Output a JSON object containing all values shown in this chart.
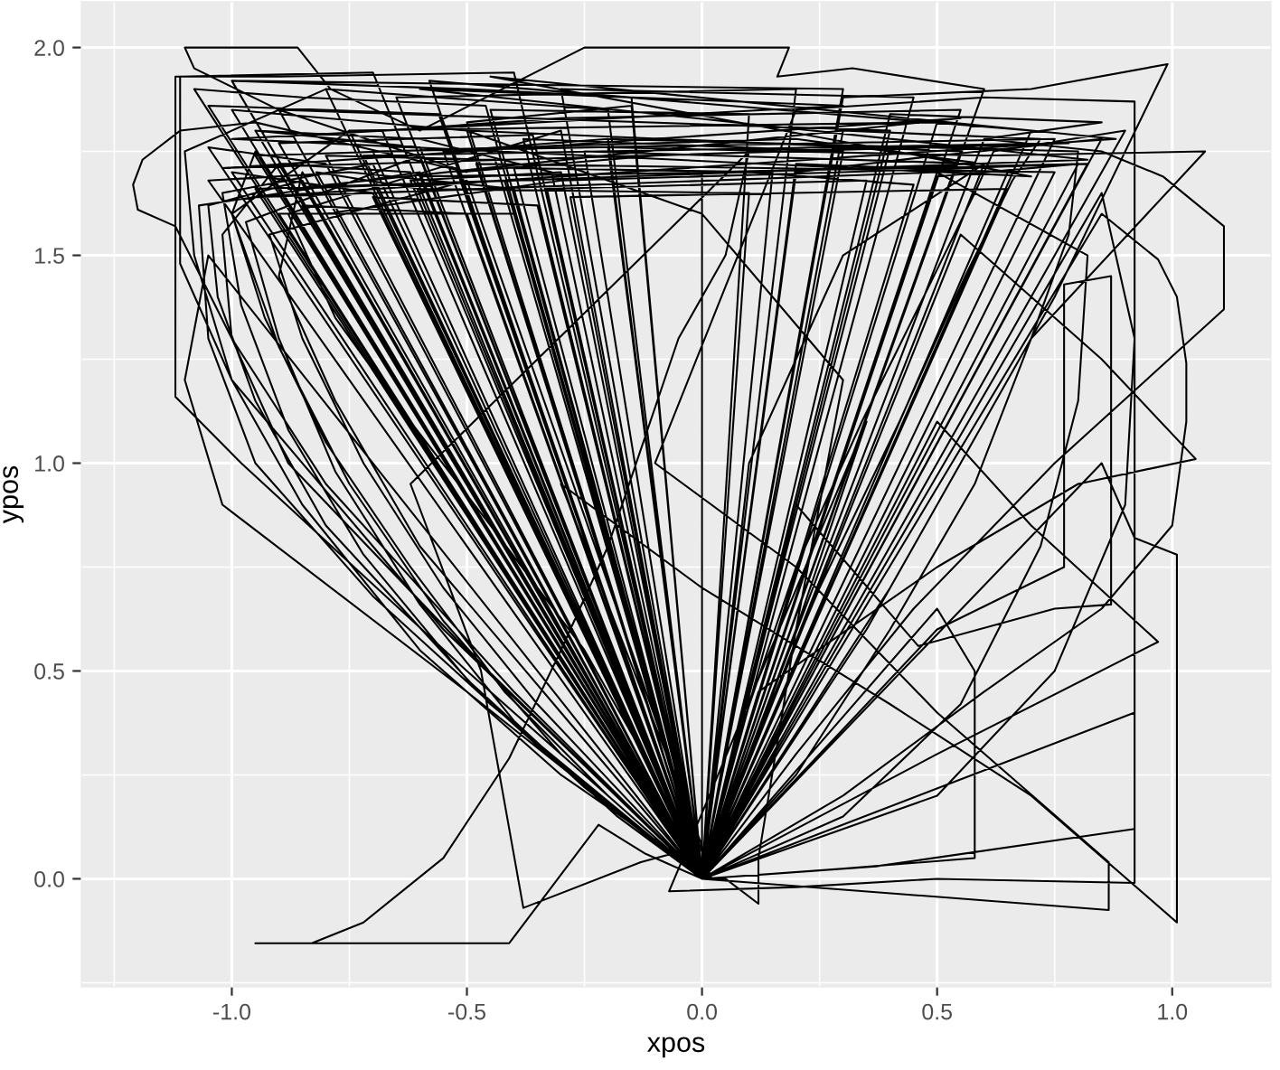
{
  "chart_data": {
    "type": "line",
    "xlabel": "xpos",
    "ylabel": "ypos",
    "xlim": [
      -1.32,
      1.21
    ],
    "ylim": [
      -0.26,
      2.11
    ],
    "xticks": [
      {
        "value": -1,
        "label": "-1.0"
      },
      -0.5,
      {
        "value": 0,
        "label": "0.0"
      },
      0.5,
      {
        "value": 1,
        "label": "1.0"
      }
    ],
    "yticks": [
      {
        "value": 0,
        "label": "0.0"
      },
      0.5,
      {
        "value": 1,
        "label": "1.0"
      },
      1.5,
      {
        "value": 2,
        "label": "2.0"
      }
    ],
    "grid": true,
    "series": [
      {
        "color": "#000000",
        "x": [
          0.0,
          -0.12,
          -0.22,
          -0.41,
          -0.95,
          -0.83,
          -0.72,
          -0.55,
          -0.41,
          -0.3,
          -0.2,
          -0.05,
          0.05,
          0.1,
          -0.62,
          -0.47,
          -0.38,
          -0.13,
          0.0,
          -0.3,
          0.0,
          0.4,
          0.7,
          1.01,
          1.01,
          0.92,
          0.85,
          0.0,
          0.37,
          0.92,
          0.92,
          0.6,
          0.2,
          -0.1,
          0.2,
          0.5,
          0.865,
          0.865,
          0.0,
          0.2,
          0.45,
          0.75,
          1.11,
          1.11,
          0.98,
          0.85,
          0.6,
          0.0,
          0.3,
          0.6,
          0.85,
          1.0,
          1.03,
          1.03,
          1.01,
          0.97,
          0.85,
          0.0,
          0.12,
          0.5,
          0.8,
          1.05,
          0.85,
          0.55,
          0.0,
          0.25,
          0.5,
          0.77,
          0.77,
          0.87,
          0.87,
          0.75,
          0.46,
          0.2,
          0.0,
          -0.5,
          -0.98,
          -1.12,
          -1.12,
          -0.9,
          -0.4,
          0.0,
          -0.4,
          -0.8,
          -1.0,
          -1.12,
          -1.2,
          -1.21,
          -1.19,
          -1.11,
          -0.95,
          -0.5,
          -0.9,
          -1.08,
          -1.1,
          -0.86,
          -0.79,
          -0.6,
          -0.25,
          0.185,
          0.16,
          0.32,
          0.6,
          0.0,
          -0.55,
          -1.0,
          -1.11,
          -1.11,
          -0.7,
          0.0,
          0.4,
          0.75,
          0.99,
          0.7,
          0.3,
          0.0,
          0.35,
          0.7,
          1.07,
          0.6,
          -0.2,
          0.0,
          -0.55,
          -0.2,
          0.0,
          -0.45,
          0.1,
          0.0,
          -0.62,
          -0.9,
          0.0,
          -0.38,
          0.3,
          0.0,
          -0.7,
          -1.0,
          0.0,
          -0.3,
          0.45,
          0.0,
          -0.5,
          -0.85,
          0.0,
          -0.25,
          0.6,
          0.0,
          -0.8,
          -1.05,
          0.0,
          -0.65,
          0.2,
          0.0,
          -0.42,
          -0.95,
          0.0,
          -0.58,
          0.7,
          0.0,
          -0.35,
          -0.7,
          0.0,
          -0.75,
          0.5,
          0.0,
          -0.2,
          -0.8,
          0.0,
          -0.48,
          0.75,
          0.0,
          -0.9,
          -0.4,
          0.0,
          0.55,
          -0.5,
          0.0,
          0.4,
          -0.9,
          0.0,
          0.65,
          0.2,
          0.0,
          0.75,
          -0.7,
          0.0,
          0.3,
          -1.0,
          0.0,
          0.82,
          0.0,
          0.0,
          -0.2,
          -0.42,
          -0.62,
          -0.8,
          -0.93,
          -1.0,
          -0.95,
          0.0,
          -0.25,
          -0.5,
          -0.72,
          -0.88,
          -0.98,
          -1.02,
          -0.7,
          0.0,
          -0.15,
          -0.35,
          -0.55,
          -0.72,
          -0.85,
          -0.92,
          -0.5,
          0.02,
          -0.3,
          -0.6,
          -0.85,
          -1.0,
          -1.08,
          -1.1,
          -0.8,
          0.0,
          -0.1,
          -0.25,
          -0.45,
          -0.62,
          -0.78,
          -0.88,
          -0.3,
          0.0,
          -0.35,
          -0.7,
          -0.95,
          -1.05,
          -1.07,
          -0.6,
          0.0,
          -0.5,
          -1.02,
          -1.1,
          -1.05,
          0.0,
          -0.3,
          -0.6,
          -0.78,
          -0.9,
          -0.85,
          0.0,
          0.1,
          0.25,
          0.42,
          0.56,
          0.66,
          0.72,
          0.3,
          0.0,
          0.2,
          0.4,
          0.58,
          0.7,
          0.78,
          0.8,
          -0.2,
          0.0,
          0.08,
          0.2,
          0.34,
          0.48,
          0.58,
          0.62,
          0.9,
          0.0,
          0.3,
          0.55,
          0.72,
          0.8,
          0.82,
          0.5,
          0.0,
          0.5,
          0.75,
          0.9,
          0.92,
          0.85,
          0.0,
          0.05,
          0.1,
          0.3,
          0.6,
          0.2,
          -0.4,
          -0.95,
          0.0,
          -0.3,
          -0.6,
          -0.8,
          -0.3,
          0.3,
          0.8,
          0.0,
          0.2,
          0.3,
          0.0,
          -0.5,
          -1.0,
          0.0,
          0.5,
          0.97,
          0.7,
          0.5,
          0.0,
          0.25,
          0.58,
          0.58,
          0.5,
          0.0,
          0.05,
          0.12,
          0.12,
          0.2,
          0.35,
          -0.07,
          0.2,
          0.5,
          0.92,
          0.92,
          0.0,
          -0.52,
          -0.1,
          0.4,
          0.0,
          -0.4,
          -0.75,
          -1.05,
          0.0,
          -0.68,
          -0.3,
          0.55,
          0.0,
          -0.46,
          -0.85,
          -1.08,
          0.0,
          -0.82,
          -0.6,
          0.1,
          0.0,
          -0.32,
          -0.6,
          -0.95,
          0.0,
          0.45,
          0.1,
          -0.6,
          0.0,
          0.6,
          0.85,
          0.4,
          0.0,
          -0.5,
          -0.88,
          -1.0,
          -1.02,
          -0.9,
          0.0,
          -0.45,
          -0.8,
          -0.95,
          -1.03,
          -1.05,
          -0.85,
          0.0,
          -0.15,
          -0.5,
          -1.0,
          0.0,
          0.2,
          0.5,
          0.85,
          0.0,
          -0.72,
          0.78,
          -1.02,
          0.55,
          -0.88,
          0.82,
          -0.6,
          0.3,
          -1.0,
          0.7,
          -0.45,
          0.88,
          -0.95,
          0.5,
          0.0,
          -0.5,
          -0.15,
          0.0,
          -0.6,
          -0.95,
          0.0,
          -0.33,
          0.35,
          0.0,
          -0.44,
          -0.8,
          0.0,
          -0.28,
          0.65,
          0.0,
          -0.56,
          -1.05,
          0.0,
          -0.4,
          0.15,
          0.0,
          0.5,
          0.8,
          0.0,
          -0.62,
          -0.3,
          0.0,
          -0.36,
          -0.9,
          0.0,
          -0.18,
          -0.4,
          -0.6,
          -0.78,
          -0.9,
          -0.97,
          -0.6,
          0.0,
          -0.3,
          -0.55,
          -0.75,
          -0.9,
          -1.0,
          -0.75
        ],
        "values": [
          0.0,
          0.06,
          0.13,
          -0.155,
          -0.155,
          -0.155,
          -0.105,
          0.05,
          0.29,
          0.55,
          0.8,
          1.3,
          1.5,
          1.75,
          0.95,
          0.5,
          -0.07,
          0.04,
          0.08,
          0.95,
          0.7,
          0.42,
          0.2,
          -0.105,
          0.78,
          0.82,
          1.0,
          0.0,
          0.03,
          0.12,
          1.87,
          1.88,
          1.85,
          1.0,
          0.75,
          0.4,
          0.04,
          -0.075,
          0.0,
          0.3,
          0.65,
          1.0,
          1.37,
          1.57,
          1.69,
          1.75,
          1.78,
          0.0,
          0.2,
          0.45,
          0.65,
          0.85,
          1.1,
          1.24,
          1.4,
          1.49,
          1.6,
          0.0,
          0.45,
          0.75,
          0.95,
          1.01,
          1.25,
          1.55,
          0.0,
          0.3,
          0.6,
          0.75,
          1.43,
          1.45,
          0.66,
          0.65,
          0.56,
          0.9,
          0.0,
          0.5,
          1.0,
          1.16,
          1.93,
          1.93,
          1.94,
          0.0,
          0.45,
          0.95,
          1.3,
          1.57,
          1.61,
          1.67,
          1.73,
          1.8,
          1.82,
          1.7,
          1.85,
          1.95,
          2.0,
          2.0,
          1.9,
          1.8,
          2.0,
          2.0,
          1.93,
          1.95,
          1.9,
          0.0,
          0.6,
          1.2,
          1.48,
          1.93,
          1.94,
          0.0,
          0.7,
          1.4,
          1.96,
          1.9,
          1.88,
          0.0,
          0.6,
          1.3,
          1.75,
          1.74,
          1.76,
          0.0,
          1.75,
          1.78,
          0.0,
          1.85,
          1.84,
          0.0,
          1.7,
          1.72,
          0.0,
          1.78,
          1.75,
          0.0,
          1.65,
          1.7,
          0.0,
          1.9,
          1.88,
          0.0,
          1.6,
          1.62,
          0.0,
          1.75,
          1.72,
          0.0,
          1.72,
          1.76,
          0.0,
          1.88,
          1.9,
          0.0,
          1.68,
          1.66,
          0.0,
          1.92,
          1.8,
          0.0,
          1.62,
          1.64,
          0.0,
          1.8,
          1.82,
          0.0,
          1.85,
          1.9,
          0.0,
          1.72,
          1.7,
          0.0,
          1.6,
          1.6,
          0.0,
          1.75,
          1.8,
          0.0,
          1.8,
          1.85,
          0.0,
          1.7,
          1.72,
          0.0,
          1.78,
          1.75,
          0.0,
          1.9,
          1.92,
          0.0,
          1.72,
          1.7,
          0.0,
          0.2,
          0.45,
          0.75,
          1.05,
          1.35,
          1.6,
          1.75,
          0.0,
          0.22,
          0.48,
          0.78,
          1.08,
          1.38,
          1.65,
          1.72,
          0.0,
          0.18,
          0.42,
          0.7,
          1.0,
          1.3,
          1.55,
          1.68,
          0.0,
          0.25,
          0.55,
          0.9,
          1.2,
          1.5,
          1.75,
          1.9,
          0.0,
          0.25,
          0.55,
          0.85,
          1.1,
          1.35,
          1.6,
          1.8,
          0.0,
          0.32,
          0.68,
          1.0,
          1.3,
          1.62,
          1.7,
          0.0,
          0.45,
          0.9,
          1.2,
          1.5,
          0.0,
          0.4,
          0.8,
          1.15,
          1.45,
          1.7,
          0.0,
          0.3,
          0.7,
          1.1,
          1.45,
          1.68,
          1.78,
          1.8,
          0.0,
          0.25,
          0.6,
          0.95,
          1.3,
          1.55,
          1.75,
          1.78,
          0.0,
          0.35,
          0.75,
          1.1,
          1.42,
          1.65,
          1.75,
          1.8,
          0.0,
          0.15,
          0.42,
          0.8,
          1.15,
          1.5,
          1.7,
          0.0,
          0.2,
          0.5,
          0.9,
          1.3,
          1.65,
          0.0,
          0.5,
          1.0,
          1.5,
          1.72,
          1.78,
          1.76,
          1.74,
          0.0,
          0.6,
          1.2,
          1.6,
          1.68,
          1.7,
          1.72,
          0.0,
          0.6,
          1.2,
          1.6,
          1.8,
          1.85,
          0.0,
          0.3,
          0.57,
          0.85,
          1.1,
          0.0,
          0.02,
          0.05,
          0.5,
          0.65,
          0.0,
          0.0,
          -0.06,
          0.05,
          0.6,
          1.1,
          -0.03,
          -0.02,
          0.0,
          -0.01,
          0.4,
          0.0,
          1.7,
          1.74,
          1.76,
          0.0,
          1.66,
          1.7,
          1.68,
          0.0,
          1.8,
          1.83,
          1.85,
          0.0,
          1.86,
          1.88,
          1.9,
          0.0,
          1.7,
          1.66,
          1.65,
          0.0,
          1.7,
          1.78,
          1.8,
          0.0,
          1.67,
          1.7,
          1.69,
          0.0,
          1.78,
          1.82,
          1.84,
          0.0,
          0.55,
          1.0,
          1.3,
          1.55,
          1.72,
          0.0,
          0.42,
          0.85,
          1.15,
          1.4,
          1.62,
          1.68,
          0.0,
          1.88,
          1.9,
          1.92,
          0.0,
          1.7,
          1.74,
          1.78,
          0.0,
          1.74,
          1.77,
          1.71,
          1.83,
          1.66,
          1.73,
          1.9,
          1.86,
          1.78,
          1.69,
          1.93,
          1.78,
          1.64,
          1.7,
          0.0,
          1.82,
          1.86,
          0.0,
          1.76,
          1.8,
          0.0,
          1.66,
          1.68,
          0.0,
          1.73,
          1.74,
          0.0,
          1.64,
          1.66,
          0.0,
          1.84,
          1.86,
          0.0,
          1.71,
          1.7,
          0.0,
          1.69,
          1.72,
          0.0,
          1.68,
          1.7,
          0.0,
          1.79,
          1.77,
          0.0,
          0.15,
          0.38,
          0.66,
          0.98,
          1.3,
          1.58,
          1.74,
          0.0,
          0.3,
          0.62,
          0.95,
          1.28,
          1.6,
          1.8
        ]
      }
    ]
  }
}
